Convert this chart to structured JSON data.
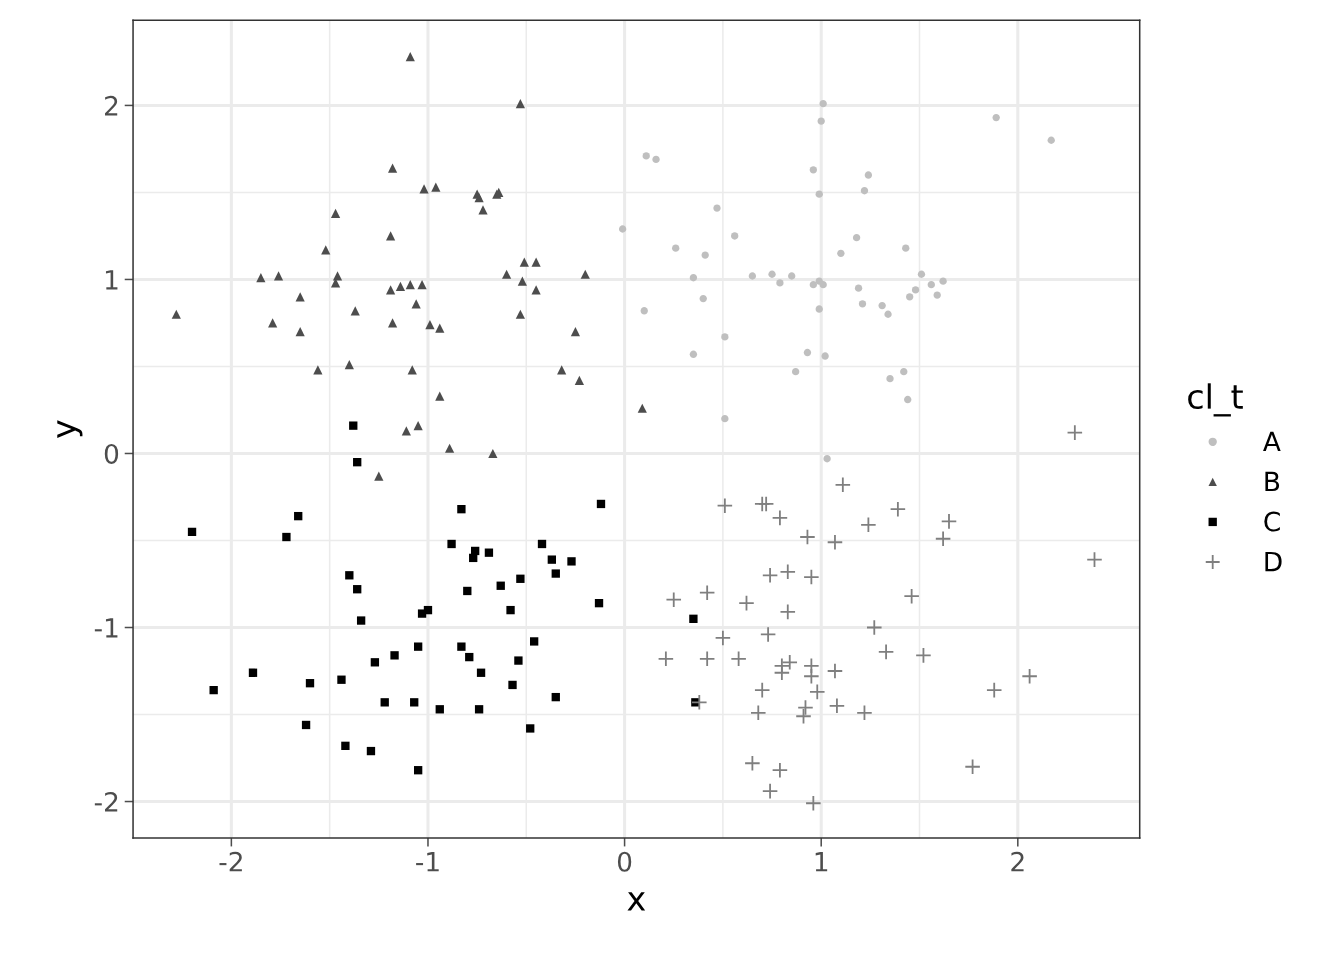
{
  "chart_data": {
    "type": "scatter",
    "xlabel": "x",
    "ylabel": "y",
    "legend_title": "cl_t",
    "legend": "right",
    "grid": true,
    "xlim": [
      -2.5,
      2.62
    ],
    "ylim": [
      -2.21,
      2.49
    ],
    "xticks": [
      -2,
      -1,
      0,
      1,
      2
    ],
    "yticks": [
      -2,
      -1,
      0,
      1,
      2
    ],
    "series": [
      {
        "name": "A",
        "color": "#bfbfbf",
        "marker": "circle",
        "x": [
          1.01,
          1.0,
          1.89,
          2.17,
          0.11,
          0.16,
          0.96,
          1.24,
          0.99,
          1.22,
          -0.01,
          0.47,
          0.56,
          0.26,
          0.41,
          1.18,
          1.43,
          1.1,
          0.35,
          0.65,
          0.75,
          0.79,
          0.85,
          0.96,
          0.99,
          1.01,
          0.99,
          1.19,
          1.21,
          1.31,
          1.34,
          1.51,
          1.56,
          1.62,
          1.59,
          1.48,
          1.45,
          0.1,
          0.4,
          0.51,
          0.35,
          0.93,
          0.87,
          1.02,
          1.35,
          1.42,
          1.44,
          0.51,
          1.03
        ],
        "values": [
          2.01,
          1.91,
          1.93,
          1.8,
          1.71,
          1.69,
          1.63,
          1.6,
          1.49,
          1.51,
          1.29,
          1.41,
          1.25,
          1.18,
          1.14,
          1.24,
          1.18,
          1.15,
          1.01,
          1.02,
          1.03,
          0.98,
          1.02,
          0.97,
          0.99,
          0.97,
          0.83,
          0.95,
          0.86,
          0.85,
          0.8,
          1.03,
          0.97,
          0.99,
          0.91,
          0.94,
          0.9,
          0.82,
          0.89,
          0.67,
          0.57,
          0.58,
          0.47,
          0.56,
          0.43,
          0.47,
          0.31,
          0.2,
          -0.03
        ]
      },
      {
        "name": "B",
        "color": "#4d4d4d",
        "marker": "triangle",
        "x": [
          -1.09,
          -0.53,
          -1.18,
          -1.02,
          -0.96,
          -0.75,
          -0.74,
          -0.65,
          -0.64,
          -0.72,
          -1.47,
          -1.19,
          -1.52,
          -1.85,
          -1.76,
          -1.46,
          -1.47,
          -1.19,
          -1.14,
          -1.09,
          -1.03,
          -1.06,
          -0.6,
          -0.51,
          -0.45,
          -0.52,
          -0.45,
          -0.2,
          -2.28,
          -1.79,
          -1.65,
          -1.65,
          -1.37,
          -1.18,
          -0.99,
          -0.94,
          -0.53,
          -0.25,
          -1.56,
          -1.4,
          -1.08,
          -0.32,
          -0.23,
          -0.94,
          -1.11,
          -1.05,
          -0.89,
          -0.67,
          -1.25,
          0.09
        ],
        "values": [
          2.28,
          2.01,
          1.64,
          1.52,
          1.53,
          1.49,
          1.47,
          1.49,
          1.5,
          1.4,
          1.38,
          1.25,
          1.17,
          1.01,
          1.02,
          1.02,
          0.98,
          0.94,
          0.96,
          0.97,
          0.97,
          0.86,
          1.03,
          1.1,
          1.1,
          0.99,
          0.94,
          1.03,
          0.8,
          0.75,
          0.9,
          0.7,
          0.82,
          0.75,
          0.74,
          0.72,
          0.8,
          0.7,
          0.48,
          0.51,
          0.48,
          0.48,
          0.42,
          0.33,
          0.13,
          0.16,
          0.03,
          0.0,
          -0.13,
          0.26
        ]
      },
      {
        "name": "C",
        "color": "#000000",
        "marker": "square",
        "x": [
          -1.38,
          -1.36,
          -2.2,
          -1.66,
          -1.72,
          -0.12,
          -0.83,
          -0.88,
          -0.77,
          -0.76,
          -0.69,
          -0.42,
          -0.37,
          -0.35,
          -0.27,
          -1.4,
          -1.36,
          -0.8,
          -0.63,
          -0.53,
          -0.13,
          -0.58,
          -1.0,
          -1.03,
          -1.34,
          -0.46,
          -1.05,
          -0.83,
          -0.79,
          -1.17,
          -1.27,
          -0.54,
          -0.73,
          -1.89,
          -1.6,
          -1.44,
          -0.57,
          -2.09,
          -0.35,
          -1.22,
          -1.07,
          -0.94,
          -0.74,
          -0.48,
          -1.62,
          -1.42,
          -1.29,
          -1.05,
          0.35,
          0.36
        ],
        "values": [
          0.16,
          -0.05,
          -0.45,
          -0.36,
          -0.48,
          -0.29,
          -0.32,
          -0.52,
          -0.6,
          -0.56,
          -0.57,
          -0.52,
          -0.61,
          -0.69,
          -0.62,
          -0.7,
          -0.78,
          -0.79,
          -0.76,
          -0.72,
          -0.86,
          -0.9,
          -0.9,
          -0.92,
          -0.96,
          -1.08,
          -1.11,
          -1.11,
          -1.17,
          -1.16,
          -1.2,
          -1.19,
          -1.26,
          -1.26,
          -1.32,
          -1.3,
          -1.33,
          -1.36,
          -1.4,
          -1.43,
          -1.43,
          -1.47,
          -1.47,
          -1.58,
          -1.56,
          -1.68,
          -1.71,
          -1.82,
          -0.95,
          -1.43
        ]
      },
      {
        "name": "D",
        "color": "#7f7f7f",
        "marker": "cross",
        "x": [
          2.29,
          1.11,
          0.51,
          0.7,
          0.72,
          0.79,
          1.39,
          1.65,
          1.62,
          1.24,
          0.93,
          1.07,
          2.39,
          0.74,
          0.83,
          0.95,
          1.46,
          0.25,
          0.42,
          0.62,
          0.83,
          1.27,
          0.5,
          0.73,
          0.21,
          0.42,
          0.58,
          1.33,
          1.52,
          0.8,
          0.84,
          0.8,
          0.95,
          0.95,
          1.07,
          2.06,
          1.88,
          0.98,
          0.7,
          0.38,
          0.68,
          0.92,
          0.91,
          1.08,
          1.22,
          0.65,
          0.79,
          1.77,
          0.74,
          0.96
        ],
        "values": [
          0.12,
          -0.18,
          -0.3,
          -0.29,
          -0.29,
          -0.37,
          -0.32,
          -0.39,
          -0.49,
          -0.41,
          -0.48,
          -0.51,
          -0.61,
          -0.7,
          -0.68,
          -0.71,
          -0.82,
          -0.84,
          -0.8,
          -0.86,
          -0.91,
          -1.0,
          -1.06,
          -1.04,
          -1.18,
          -1.18,
          -1.18,
          -1.14,
          -1.16,
          -1.22,
          -1.2,
          -1.26,
          -1.22,
          -1.28,
          -1.25,
          -1.28,
          -1.36,
          -1.37,
          -1.36,
          -1.43,
          -1.49,
          -1.46,
          -1.51,
          -1.45,
          -1.49,
          -1.78,
          -1.82,
          -1.8,
          -1.94,
          -2.01
        ]
      }
    ]
  }
}
